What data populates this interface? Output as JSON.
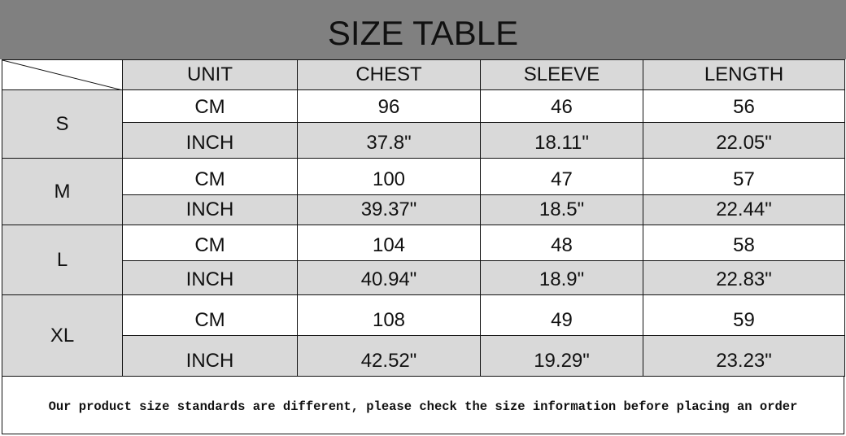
{
  "title": "SIZE TABLE",
  "headers": [
    "UNIT",
    "CHEST",
    "SLEEVE",
    "LENGTH"
  ],
  "sizes": [
    {
      "size": "S",
      "cm": {
        "unit": "CM",
        "chest": "96",
        "sleeve": "46",
        "length": "56"
      },
      "inch": {
        "unit": "INCH",
        "chest": "37.8\"",
        "sleeve": "18.11\"",
        "length": "22.05\""
      }
    },
    {
      "size": "M",
      "cm": {
        "unit": "CM",
        "chest": "100",
        "sleeve": "47",
        "length": "57"
      },
      "inch": {
        "unit": "INCH",
        "chest": "39.37\"",
        "sleeve": "18.5\"",
        "length": "22.44\""
      }
    },
    {
      "size": "L",
      "cm": {
        "unit": "CM",
        "chest": "104",
        "sleeve": "48",
        "length": "58"
      },
      "inch": {
        "unit": "INCH",
        "chest": "40.94\"",
        "sleeve": "18.9\"",
        "length": "22.83\""
      }
    },
    {
      "size": "XL",
      "cm": {
        "unit": "CM",
        "chest": "108",
        "sleeve": "49",
        "length": "59"
      },
      "inch": {
        "unit": "INCH",
        "chest": "42.52\"",
        "sleeve": "19.29\"",
        "length": "23.23\""
      }
    }
  ],
  "footer": "Our product size standards are different, please check the size information before placing an order",
  "colors": {
    "title_bg": "#808080",
    "cell_gray": "#d9d9d9"
  }
}
